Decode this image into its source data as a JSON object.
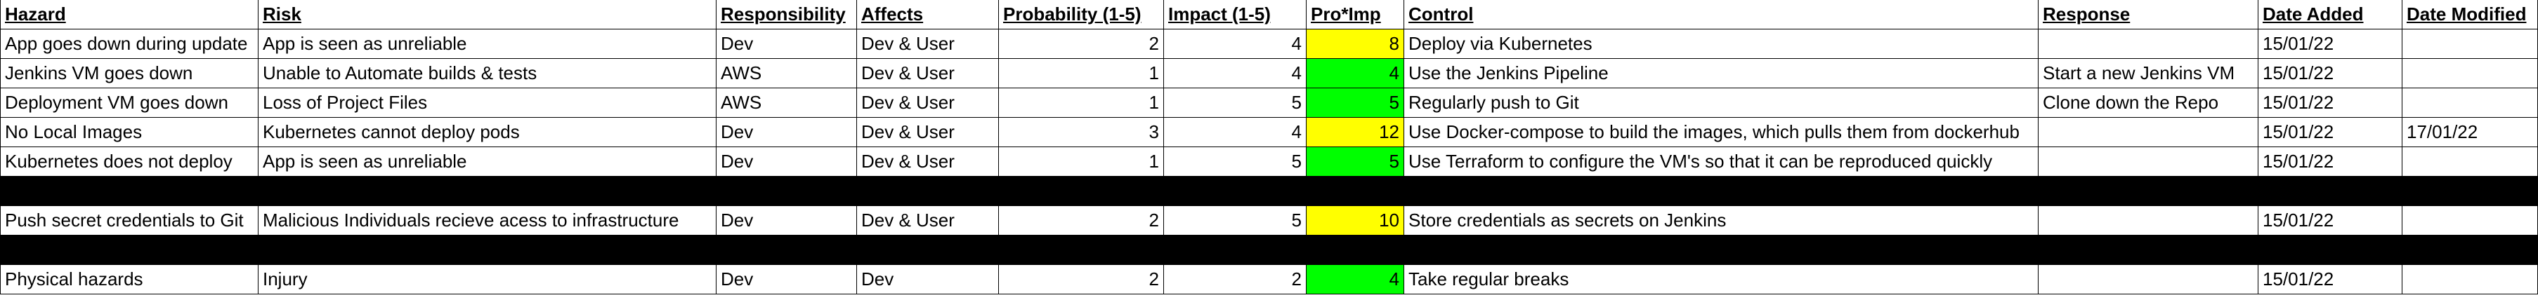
{
  "colors": {
    "low_risk": "#00ff00",
    "medium_risk": "#ffff00",
    "blocked_row": "#000000"
  },
  "headers": [
    "Hazard",
    "Risk",
    "Responsibility",
    "Affects",
    "Probability (1-5)",
    "Impact (1-5)",
    "Pro*Imp",
    "Control",
    "Response",
    "Date Added",
    "Date Modified"
  ],
  "rows": [
    {
      "hazard": "App goes down during update",
      "risk": "App is seen as unreliable",
      "responsibility": "Dev",
      "affects": "Dev & User",
      "probability": "2",
      "impact": "4",
      "score": "8",
      "control": "Deploy via Kubernetes",
      "response": "",
      "date_added": "15/01/22",
      "date_modified": ""
    },
    {
      "hazard": "Jenkins VM goes down",
      "risk": "Unable to Automate builds & tests",
      "responsibility": "AWS",
      "affects": "Dev & User",
      "probability": "1",
      "impact": "4",
      "score": "4",
      "control": "Use the Jenkins Pipeline",
      "response": "Start a new Jenkins VM",
      "date_added": "15/01/22",
      "date_modified": ""
    },
    {
      "hazard": "Deployment VM goes down",
      "risk": "Loss of Project Files",
      "responsibility": "AWS",
      "affects": "Dev & User",
      "probability": "1",
      "impact": "5",
      "score": "5",
      "control": "Regularly push to Git",
      "response": "Clone down the Repo",
      "date_added": "15/01/22",
      "date_modified": ""
    },
    {
      "hazard": "No Local Images",
      "risk": "Kubernetes cannot deploy pods",
      "responsibility": "Dev",
      "affects": "Dev & User",
      "probability": "3",
      "impact": "4",
      "score": "12",
      "control": "Use Docker-compose to build the images, which pulls them from dockerhub",
      "response": "",
      "date_added": "15/01/22",
      "date_modified": "17/01/22"
    },
    {
      "hazard": "Kubernetes does not deploy",
      "risk": "App is seen as unreliable",
      "responsibility": "Dev",
      "affects": "Dev & User",
      "probability": "1",
      "impact": "5",
      "score": "5",
      "control": "Use Terraform to configure the VM's so that it can be reproduced quickly",
      "response": "",
      "date_added": "15/01/22",
      "date_modified": ""
    },
    {
      "hazard": "Push secret credentials to Git",
      "risk": "Malicious Individuals recieve acess to infrastructure",
      "responsibility": "Dev",
      "affects": "Dev & User",
      "probability": "2",
      "impact": "5",
      "score": "10",
      "control": "Store credentials as secrets on Jenkins",
      "response": "",
      "date_added": "15/01/22",
      "date_modified": ""
    },
    {
      "hazard": "Physical hazards",
      "risk": "Injury",
      "responsibility": "Dev",
      "affects": "Dev",
      "probability": "2",
      "impact": "2",
      "score": "4",
      "control": "Take regular breaks",
      "response": "",
      "date_added": "15/01/22",
      "date_modified": ""
    }
  ]
}
